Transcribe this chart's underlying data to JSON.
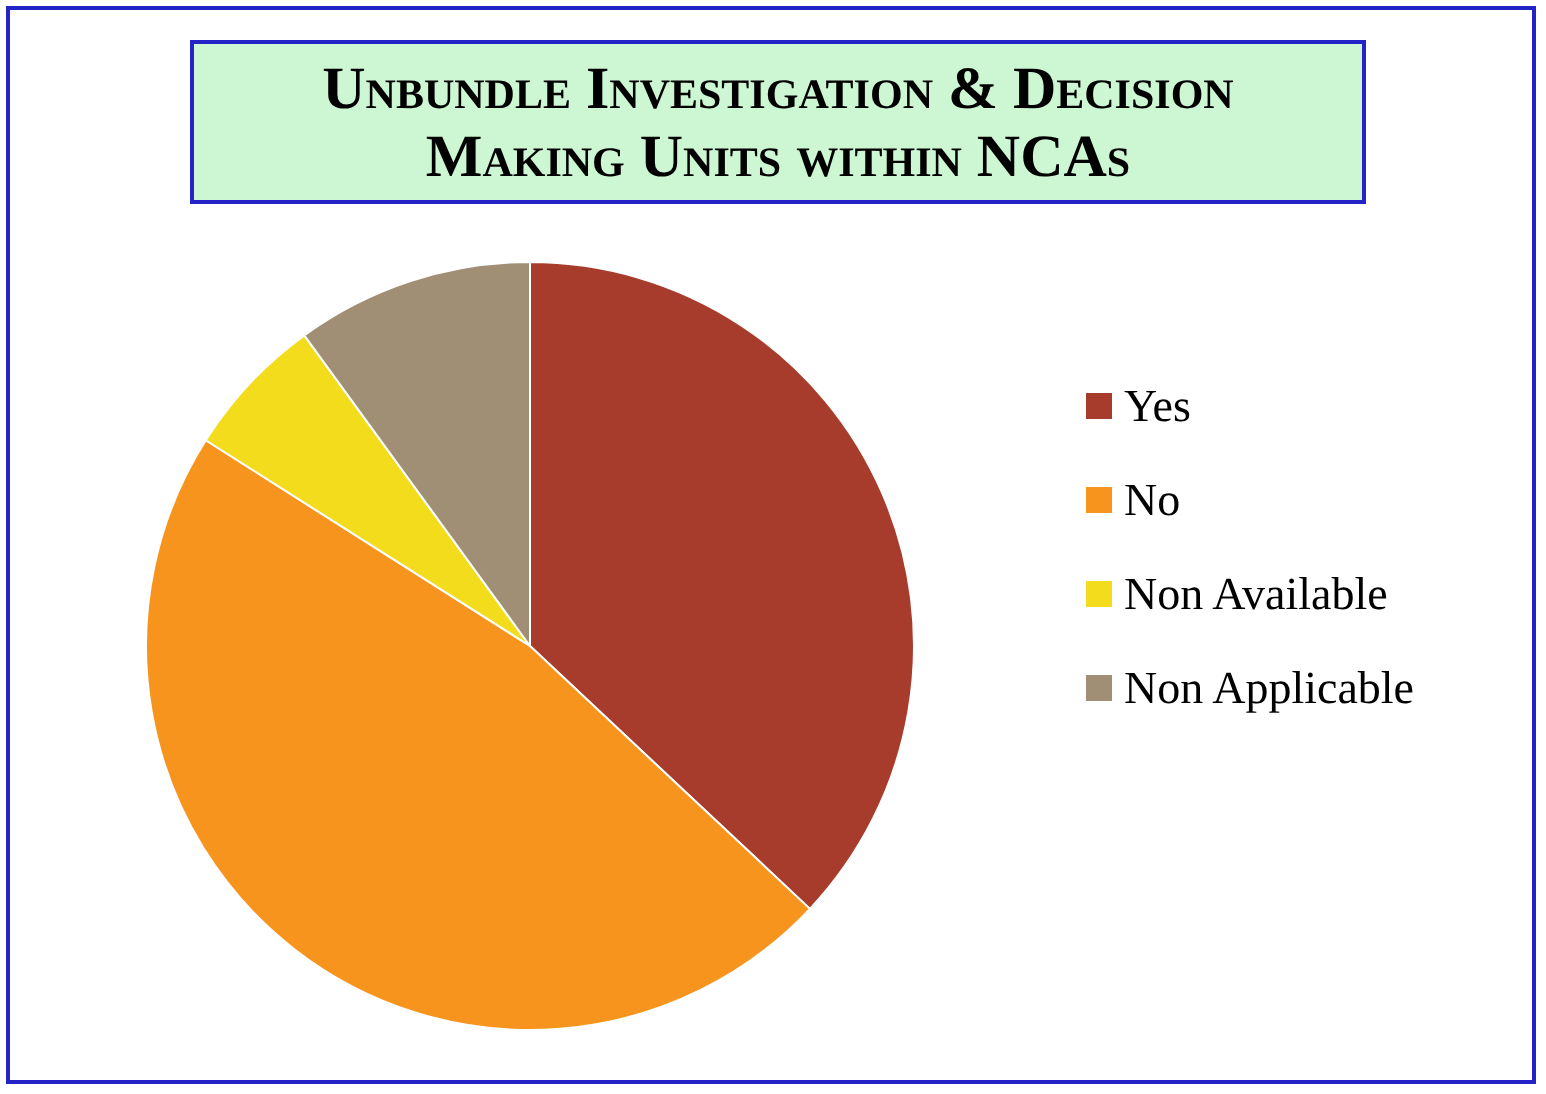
{
  "chart_data": {
    "type": "pie",
    "title": "Unbundle Investigation & Decision Making Units within NCAs",
    "categories": [
      "Yes",
      "No",
      "Non Available",
      "Non Applicable"
    ],
    "values": [
      37,
      47,
      6,
      10
    ],
    "colors": [
      "#a83c2c",
      "#f7941d",
      "#f2dc1c",
      "#a08f74"
    ],
    "legend": "right"
  }
}
